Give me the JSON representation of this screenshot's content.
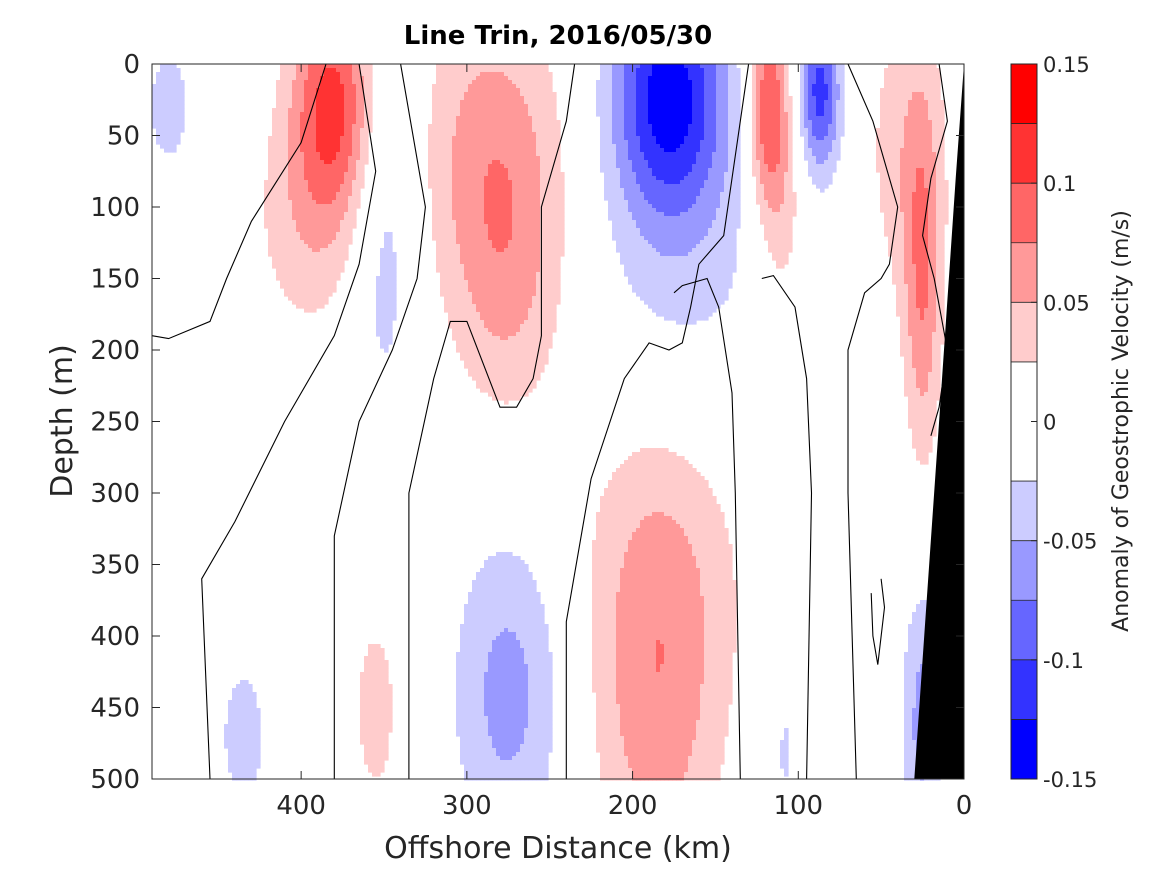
{
  "chart_data": {
    "type": "heatmap",
    "title": "Line Trin, 2016/05/30",
    "xlabel": "Offshore Distance (km)",
    "ylabel": "Depth (m)",
    "colorbar_label": "Anomaly of Geostrophic Velocity (m/s)",
    "xlim": [
      490,
      0
    ],
    "ylim": [
      0,
      500
    ],
    "x_ticks": [
      400,
      300,
      200,
      100,
      0
    ],
    "y_ticks": [
      0,
      50,
      100,
      150,
      200,
      250,
      300,
      350,
      400,
      450,
      500
    ],
    "clim": [
      -0.15,
      0.15
    ],
    "colorbar_ticks": [
      {
        "value": 0.15,
        "label": "0.15"
      },
      {
        "value": 0.1,
        "label": "0.1"
      },
      {
        "value": 0.05,
        "label": "0.05"
      },
      {
        "value": 0,
        "label": "0"
      },
      {
        "value": -0.05,
        "label": "-0.05"
      },
      {
        "value": -0.1,
        "label": "-0.1"
      },
      {
        "value": -0.15,
        "label": "-0.15"
      }
    ],
    "color_levels": [
      {
        "range": [
          0.125,
          0.15
        ],
        "color": "#ff0000"
      },
      {
        "range": [
          0.1,
          0.125
        ],
        "color": "#ff3333"
      },
      {
        "range": [
          0.075,
          0.1
        ],
        "color": "#ff6666"
      },
      {
        "range": [
          0.05,
          0.075
        ],
        "color": "#ff9999"
      },
      {
        "range": [
          0.025,
          0.05
        ],
        "color": "#ffcccc"
      },
      {
        "range": [
          -0.025,
          0.025
        ],
        "color": "#ffffff"
      },
      {
        "range": [
          -0.05,
          -0.025
        ],
        "color": "#ccccff"
      },
      {
        "range": [
          -0.075,
          -0.05
        ],
        "color": "#9999ff"
      },
      {
        "range": [
          -0.1,
          -0.075
        ],
        "color": "#6666ff"
      },
      {
        "range": [
          -0.125,
          -0.1
        ],
        "color": "#3333ff"
      },
      {
        "range": [
          -0.15,
          -0.125
        ],
        "color": "#0000ff"
      }
    ],
    "anomalies": [
      {
        "x": 480,
        "y": 30,
        "sx": 12,
        "sy": 40,
        "v": -0.035
      },
      {
        "x": 380,
        "y": 25,
        "sx": 18,
        "sy": 55,
        "v": 0.105
      },
      {
        "x": 395,
        "y": 110,
        "sx": 25,
        "sy": 60,
        "v": 0.04
      },
      {
        "x": 350,
        "y": 100,
        "sx": 15,
        "sy": 110,
        "v": -0.045
      },
      {
        "x": 285,
        "y": 60,
        "sx": 32,
        "sy": 80,
        "v": 0.06
      },
      {
        "x": 275,
        "y": 160,
        "sx": 24,
        "sy": 70,
        "v": 0.04
      },
      {
        "x": 178,
        "y": 20,
        "sx": 24,
        "sy": 60,
        "v": -0.13
      },
      {
        "x": 170,
        "y": 150,
        "sx": 40,
        "sy": 100,
        "v": -0.035
      },
      {
        "x": 118,
        "y": 30,
        "sx": 9,
        "sy": 50,
        "v": 0.1
      },
      {
        "x": 110,
        "y": 110,
        "sx": 11,
        "sy": 60,
        "v": 0.035
      },
      {
        "x": 87,
        "y": 20,
        "sx": 9,
        "sy": 40,
        "v": -0.11
      },
      {
        "x": 35,
        "y": 60,
        "sx": 18,
        "sy": 80,
        "v": 0.04
      },
      {
        "x": 25,
        "y": 160,
        "sx": 8,
        "sy": 90,
        "v": 0.065
      },
      {
        "x": 275,
        "y": 440,
        "sx": 24,
        "sy": 80,
        "v": -0.06
      },
      {
        "x": 185,
        "y": 450,
        "sx": 28,
        "sy": 100,
        "v": 0.06
      },
      {
        "x": 180,
        "y": 320,
        "sx": 38,
        "sy": 90,
        "v": 0.035
      },
      {
        "x": 355,
        "y": 450,
        "sx": 12,
        "sy": 60,
        "v": 0.035
      },
      {
        "x": 435,
        "y": 470,
        "sx": 11,
        "sy": 40,
        "v": -0.04
      },
      {
        "x": 108,
        "y": 480,
        "sx": 6,
        "sy": 40,
        "v": -0.03
      },
      {
        "x": 25,
        "y": 460,
        "sx": 9,
        "sy": 70,
        "v": -0.06
      }
    ],
    "zero_contours": [
      [
        [
          490,
          190
        ],
        [
          480,
          192
        ],
        [
          455,
          180
        ],
        [
          445,
          150
        ],
        [
          430,
          110
        ],
        [
          400,
          55
        ],
        [
          385,
          0
        ]
      ],
      [
        [
          455,
          500
        ],
        [
          460,
          360
        ],
        [
          440,
          320
        ],
        [
          410,
          250
        ],
        [
          380,
          190
        ],
        [
          365,
          140
        ],
        [
          355,
          75
        ],
        [
          365,
          0
        ]
      ],
      [
        [
          380,
          500
        ],
        [
          380,
          330
        ],
        [
          365,
          250
        ],
        [
          345,
          200
        ],
        [
          330,
          150
        ],
        [
          325,
          100
        ],
        [
          340,
          0
        ]
      ],
      [
        [
          335,
          500
        ],
        [
          335,
          300
        ],
        [
          320,
          220
        ],
        [
          310,
          180
        ],
        [
          300,
          180
        ],
        [
          280,
          240
        ],
        [
          270,
          240
        ],
        [
          260,
          220
        ],
        [
          255,
          190
        ],
        [
          255,
          100
        ],
        [
          240,
          40
        ],
        [
          235,
          0
        ]
      ],
      [
        [
          240,
          500
        ],
        [
          240,
          390
        ],
        [
          225,
          290
        ],
        [
          205,
          220
        ],
        [
          190,
          195
        ],
        [
          178,
          200
        ],
        [
          170,
          195
        ],
        [
          165,
          170
        ],
        [
          160,
          140
        ],
        [
          145,
          120
        ],
        [
          140,
          80
        ],
        [
          135,
          40
        ],
        [
          130,
          0
        ]
      ],
      [
        [
          135,
          500
        ],
        [
          138,
          300
        ],
        [
          140,
          230
        ],
        [
          148,
          170
        ],
        [
          155,
          150
        ],
        [
          170,
          155
        ],
        [
          175,
          160
        ]
      ],
      [
        [
          95,
          500
        ],
        [
          92,
          300
        ],
        [
          95,
          220
        ],
        [
          102,
          170
        ],
        [
          115,
          148
        ],
        [
          122,
          150
        ]
      ],
      [
        [
          65,
          500
        ],
        [
          70,
          300
        ],
        [
          70,
          200
        ],
        [
          60,
          160
        ],
        [
          50,
          150
        ],
        [
          45,
          140
        ],
        [
          40,
          100
        ],
        [
          55,
          40
        ],
        [
          70,
          0
        ]
      ],
      [
        [
          50,
          360
        ],
        [
          48,
          380
        ],
        [
          52,
          420
        ],
        [
          55,
          400
        ],
        [
          56,
          370
        ]
      ],
      [
        [
          20,
          260
        ],
        [
          15,
          240
        ],
        [
          10,
          200
        ],
        [
          18,
          150
        ],
        [
          25,
          120
        ],
        [
          20,
          80
        ],
        [
          10,
          40
        ],
        [
          15,
          0
        ]
      ]
    ],
    "topography_polygon": [
      [
        0,
        0
      ],
      [
        0,
        500
      ],
      [
        30,
        500
      ],
      [
        15,
        250
      ],
      [
        5,
        80
      ]
    ]
  }
}
